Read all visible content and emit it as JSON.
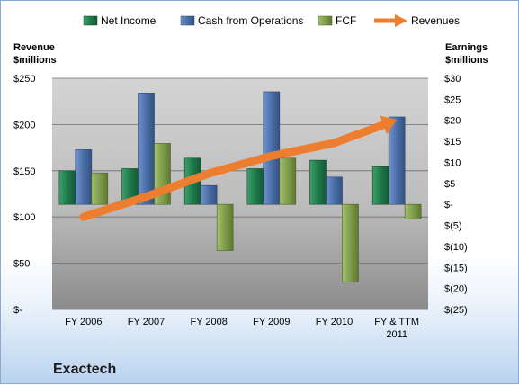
{
  "chart_data": {
    "type": "bar",
    "title": "Exactech",
    "legend": [
      {
        "name": "Net Income",
        "color": "#1e7a4a",
        "kind": "bar"
      },
      {
        "name": "Cash from Operations",
        "color": "#4a6fa8",
        "kind": "bar"
      },
      {
        "name": "FCF",
        "color": "#7f9e48",
        "kind": "bar"
      },
      {
        "name": "Revenues",
        "color": "#ee7e2f",
        "kind": "arrow"
      }
    ],
    "legend_position": "top",
    "categories": [
      "FY 2006",
      "FY 2007",
      "FY 2008",
      "FY 2009",
      "FY 2010",
      "FY & TTM 2011"
    ],
    "left_axis": {
      "title_line1": "Revenue",
      "title_line2": "$millions",
      "range": [
        0,
        250
      ],
      "ticks": [
        "$-",
        "$50",
        "$100",
        "$150",
        "$200",
        "$250"
      ],
      "tick_values": [
        0,
        50,
        100,
        150,
        200,
        250
      ]
    },
    "right_axis": {
      "title_line1": "Earnings",
      "title_line2": "$millions",
      "range": [
        -25,
        30
      ],
      "ticks": [
        "$(25)",
        "$(20)",
        "$(15)",
        "$(10)",
        "$(5)",
        "$-",
        "$5",
        "$10",
        "$15",
        "$20",
        "$25",
        "$30"
      ],
      "tick_values": [
        -25,
        -20,
        -15,
        -10,
        -5,
        0,
        5,
        10,
        15,
        20,
        25,
        30
      ]
    },
    "series": [
      {
        "name": "Net Income",
        "axis": "right",
        "values": [
          8,
          8.5,
          11,
          8.5,
          10.5,
          9
        ]
      },
      {
        "name": "Cash from Operations",
        "axis": "right",
        "values": [
          13,
          26.5,
          4.5,
          26.8,
          6.5,
          20.8
        ]
      },
      {
        "name": "FCF",
        "axis": "right",
        "values": [
          7.5,
          14.5,
          -11,
          11,
          -18.5,
          -3.5
        ]
      },
      {
        "name": "Revenues",
        "axis": "left",
        "values": [
          100,
          122,
          147,
          166,
          180,
          205
        ]
      }
    ],
    "grid": true,
    "company_label": "Exactech"
  }
}
